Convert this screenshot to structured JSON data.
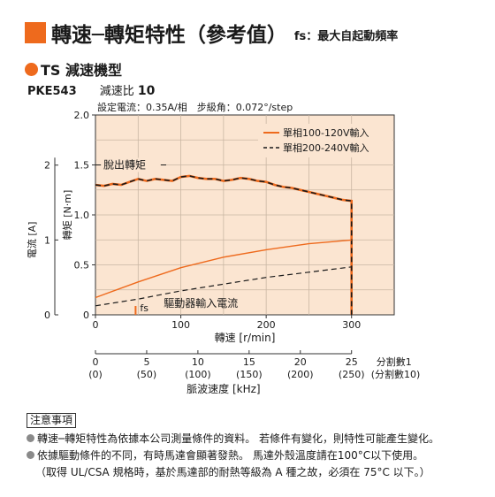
{
  "header": {
    "title": "轉速─轉矩特性（參考值）",
    "subtitle": "fs：最大自起動頻率"
  },
  "series_label": "TS 減速機型",
  "model": "PKE543",
  "ratio_label": "減速比",
  "ratio_value": "10",
  "colors": {
    "accent": "#ee6a1d",
    "plot_bg": "#fbe5d1",
    "grid": "#c9b6a3",
    "series_120v": "#ee6a1d",
    "series_240v": "#1a1a1a"
  },
  "chart_data": {
    "type": "line",
    "setting_text": "設定電流：0.35A/相　步級角：0.072°/step",
    "xlabel": "轉速 [r/min]",
    "ylabel": "轉矩 [N·m]",
    "y2label": "電流 [A]",
    "xlim": [
      0,
      350
    ],
    "ylim": [
      0,
      2.0
    ],
    "y2lim": [
      0,
      2.67
    ],
    "xticks": [
      "0",
      "100",
      "200",
      "300"
    ],
    "yticks": [
      "0",
      "0.5",
      "1.0",
      "1.5",
      "2.0"
    ],
    "y2ticks": [
      "0",
      "1",
      "2"
    ],
    "grid": true,
    "legend_position": "top-right",
    "legend": [
      "單相100-120V輸入",
      "單相200-240V輸入"
    ],
    "series": [
      {
        "name": "單相100-120V輸入",
        "kind": "torque",
        "x": [
          0,
          10,
          20,
          30,
          40,
          50,
          60,
          70,
          80,
          90,
          100,
          110,
          120,
          130,
          140,
          150,
          160,
          170,
          180,
          190,
          200,
          210,
          220,
          230,
          240,
          250,
          260,
          270,
          280,
          290,
          300,
          300
        ],
        "y": [
          1.3,
          1.29,
          1.31,
          1.3,
          1.33,
          1.36,
          1.34,
          1.36,
          1.35,
          1.34,
          1.38,
          1.39,
          1.37,
          1.36,
          1.36,
          1.34,
          1.35,
          1.37,
          1.36,
          1.34,
          1.33,
          1.3,
          1.28,
          1.27,
          1.25,
          1.23,
          1.21,
          1.19,
          1.17,
          1.15,
          1.14,
          0
        ]
      },
      {
        "name": "單相200-240V輸入",
        "kind": "torque",
        "x": [
          0,
          10,
          20,
          30,
          40,
          50,
          60,
          70,
          80,
          90,
          100,
          110,
          120,
          130,
          140,
          150,
          160,
          170,
          180,
          190,
          200,
          210,
          220,
          230,
          240,
          250,
          260,
          270,
          280,
          290,
          300,
          300
        ],
        "y": [
          1.3,
          1.29,
          1.31,
          1.3,
          1.33,
          1.36,
          1.34,
          1.36,
          1.35,
          1.34,
          1.38,
          1.39,
          1.37,
          1.36,
          1.36,
          1.34,
          1.35,
          1.37,
          1.36,
          1.34,
          1.33,
          1.3,
          1.28,
          1.27,
          1.25,
          1.23,
          1.21,
          1.19,
          1.17,
          1.15,
          1.14,
          0
        ]
      },
      {
        "name": "單相100-120V輸入",
        "kind": "current",
        "x": [
          0,
          50,
          100,
          150,
          200,
          250,
          300
        ],
        "y": [
          0.23,
          0.44,
          0.63,
          0.77,
          0.87,
          0.95,
          1.0
        ]
      },
      {
        "name": "單相200-240V輸入",
        "kind": "current",
        "x": [
          0,
          50,
          100,
          150,
          200,
          250,
          300
        ],
        "y": [
          0.12,
          0.21,
          0.32,
          0.41,
          0.5,
          0.57,
          0.64
        ]
      }
    ],
    "annotations": {
      "pullout": "脫出轉矩",
      "driver_current": "驅動器輸入電流",
      "fs": "fs",
      "fs_x": 47
    },
    "pulse_axis": {
      "label": "脈波速度 [kHz]",
      "ticks": [
        "0",
        "5",
        "10",
        "15",
        "20",
        "25"
      ],
      "ticks_sub": [
        "(0)",
        "(50)",
        "(100)",
        "(150)",
        "(200)",
        "(250)"
      ],
      "div_label": "分割數1",
      "div_label_sub": "(分割數10)",
      "max_khz": 25,
      "max_rpm": 300
    }
  },
  "notes": {
    "title": "注意事項",
    "items": [
      "轉速─轉矩特性為依據本公司測量條件的資料。 若條件有變化，則特性可能產生變化。",
      "依據驅動條件的不同，有時馬達會顯著發熱。 馬達外殼溫度請在100°C以下使用。"
    ],
    "sub": "（取得 UL/CSA 規格時，基於馬達部的耐熱等級為 A 種之故，必須在 75°C 以下。）"
  }
}
